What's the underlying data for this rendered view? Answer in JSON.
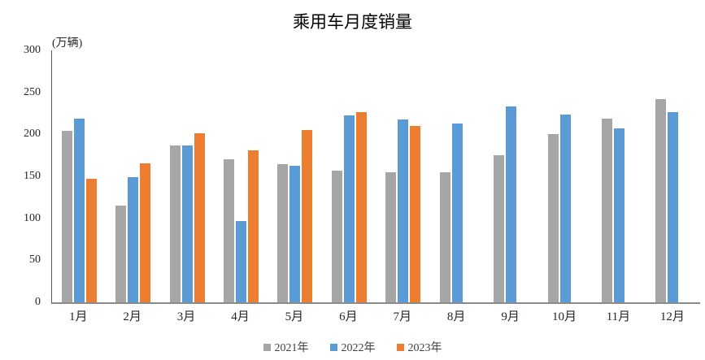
{
  "title": "乘用车月度销量",
  "y_axis": {
    "unit_label": "(万辆)"
  },
  "chart_data": {
    "type": "bar",
    "title": "乘用车月度销量",
    "xlabel": "",
    "ylabel": "(万辆)",
    "ylim": [
      0,
      300
    ],
    "y_ticks": [
      300,
      250,
      200,
      150,
      100,
      50,
      0
    ],
    "grid": false,
    "legend_position": "bottom",
    "categories": [
      "1月",
      "2月",
      "3月",
      "4月",
      "5月",
      "6月",
      "7月",
      "8月",
      "9月",
      "10月",
      "11月",
      "12月"
    ],
    "series": [
      {
        "name": "2021年",
        "color": "#A6A6A6",
        "values": [
          204.5,
          115.6,
          187.1,
          170.8,
          164.6,
          156.9,
          155.1,
          155.2,
          175.1,
          200.7,
          219.2,
          242.2
        ]
      },
      {
        "name": "2022年",
        "color": "#5B9BD5",
        "values": [
          218.6,
          148.7,
          186.4,
          96.5,
          162.3,
          222.2,
          217.4,
          212.5,
          233.2,
          223.1,
          207.5,
          226.3
        ]
      },
      {
        "name": "2023年",
        "color": "#ED7D31",
        "values": [
          146.9,
          165.3,
          201.7,
          181.1,
          205.1,
          226.8,
          210,
          null,
          null,
          null,
          null,
          null
        ]
      }
    ]
  }
}
